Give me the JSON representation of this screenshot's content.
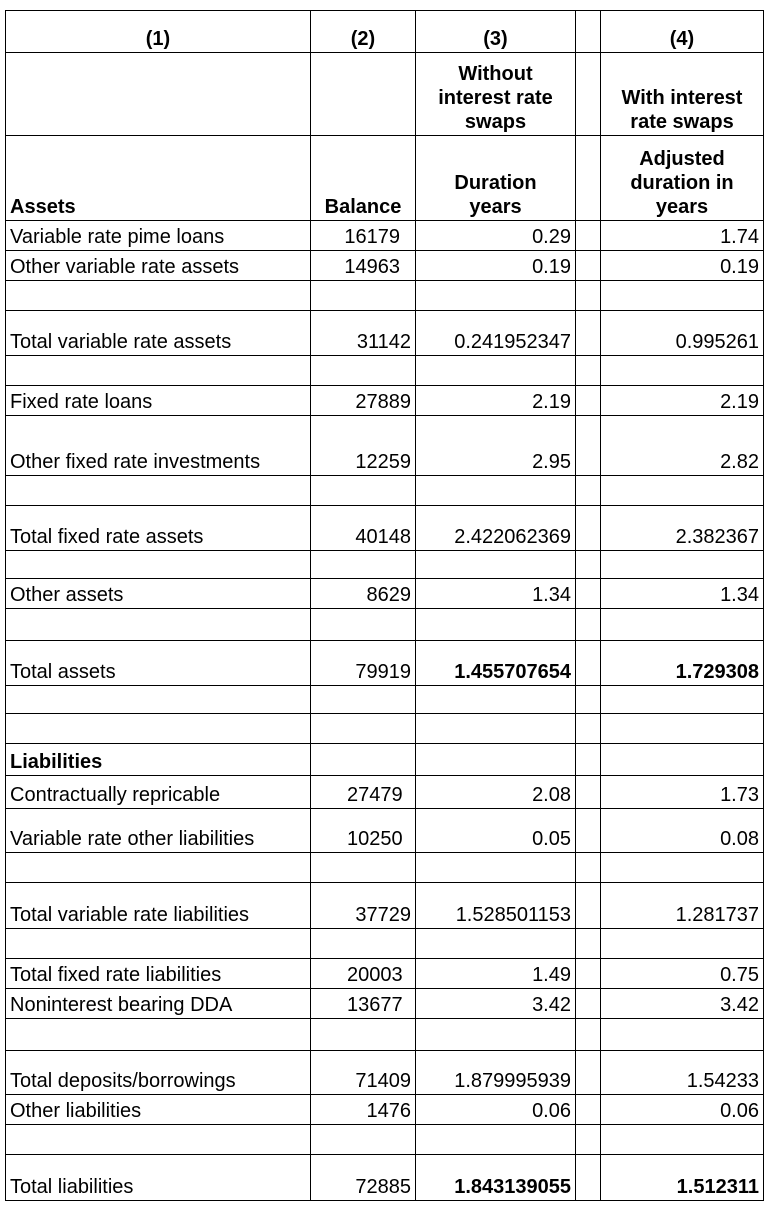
{
  "table": {
    "header": [
      [
        "(1)",
        "(2)",
        "(3)",
        "(4)"
      ],
      [
        "Without interest rate swaps",
        "With interest rate swaps"
      ],
      [
        "Assets",
        "Balance",
        "Duration years",
        "Adjusted duration in years"
      ]
    ],
    "liabilities_heading": "Liabilities",
    "rows": [
      [
        "Variable rate pime loans",
        16179,
        0.29,
        1.74
      ],
      [
        "Other variable rate assets",
        14963,
        0.19,
        0.19
      ],
      [
        "Total variable rate assets",
        31142,
        0.241952347,
        0.995261
      ],
      [
        "Fixed rate loans",
        27889,
        2.19,
        2.19
      ],
      [
        "Other fixed rate investments",
        12259,
        2.95,
        2.82
      ],
      [
        "Total fixed rate assets",
        40148,
        2.422062369,
        2.382367
      ],
      [
        "Other assets",
        8629,
        1.34,
        1.34
      ],
      [
        "Total assets",
        79919,
        1.455707654,
        1.729308
      ],
      [
        "Contractually repricable",
        27479,
        2.08,
        1.73
      ],
      [
        "Variable rate other liabilities",
        10250,
        0.05,
        0.08
      ],
      [
        "Total variable rate liabilities",
        37729,
        1.528501153,
        1.281737
      ],
      [
        "Total fixed rate liabilities",
        20003,
        1.49,
        0.75
      ],
      [
        "Noninterest bearing DDA",
        13677,
        3.42,
        3.42
      ],
      [
        "Total deposits/borrowings",
        71409,
        1.879995939,
        1.54233
      ],
      [
        "Other liabilities",
        1476,
        0.06,
        0.06
      ],
      [
        "Total liabilities",
        72885,
        1.843139055,
        1.512311
      ]
    ]
  }
}
